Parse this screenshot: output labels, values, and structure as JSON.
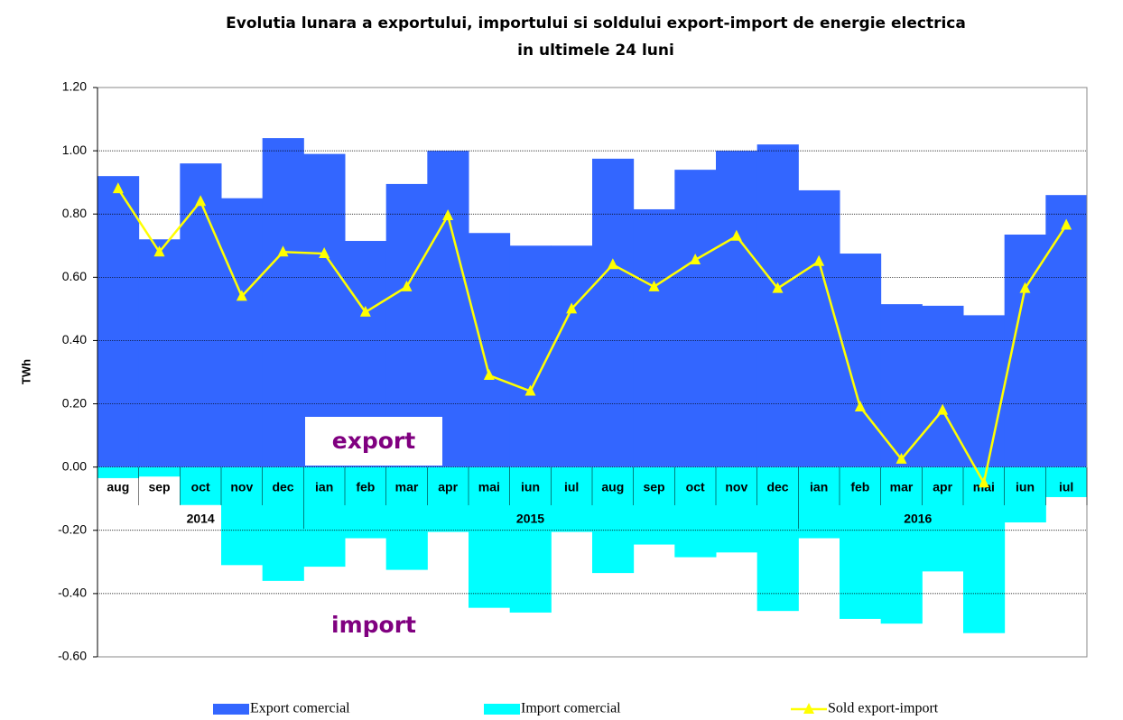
{
  "chart_data": {
    "type": "bar-line",
    "title": "Evolutia lunara a exportului, importului si soldului export-import de energie electrica",
    "subtitle": "in ultimele 24 luni",
    "y_label": "TWh",
    "categories": [
      "aug",
      "sep",
      "oct",
      "nov",
      "dec",
      "ian",
      "feb",
      "mar",
      "apr",
      "mai",
      "iun",
      "iul",
      "aug",
      "sep",
      "oct",
      "nov",
      "dec",
      "ian",
      "feb",
      "mar",
      "apr",
      "mai",
      "iun",
      "iul"
    ],
    "year_labels": [
      "2014",
      "2015",
      "2016"
    ],
    "annotations": [
      "export",
      "import"
    ],
    "series": [
      {
        "name": "Export comercial",
        "color": "#3366ff",
        "kind": "bar",
        "values": [
          0.92,
          0.72,
          0.96,
          0.85,
          1.04,
          0.99,
          0.715,
          0.895,
          1.0,
          0.74,
          0.7,
          0.7,
          0.975,
          0.815,
          0.94,
          1.0,
          1.02,
          0.875,
          0.675,
          0.515,
          0.51,
          0.48,
          0.735,
          0.86
        ]
      },
      {
        "name": "Import comercial",
        "color": "#00ffff",
        "kind": "bar",
        "values": [
          -0.035,
          -0.03,
          -0.12,
          -0.31,
          -0.36,
          -0.315,
          -0.225,
          -0.325,
          -0.205,
          -0.445,
          -0.46,
          -0.205,
          -0.335,
          -0.245,
          -0.285,
          -0.27,
          -0.455,
          -0.225,
          -0.48,
          -0.495,
          -0.33,
          -0.525,
          -0.175,
          -0.095
        ]
      },
      {
        "name": "Sold export-import",
        "color": "#ffff00",
        "kind": "line",
        "values": [
          0.88,
          0.68,
          0.84,
          0.54,
          0.68,
          0.675,
          0.49,
          0.57,
          0.795,
          0.29,
          0.24,
          0.5,
          0.64,
          0.57,
          0.655,
          0.73,
          0.565,
          0.65,
          0.19,
          0.025,
          0.18,
          -0.05,
          0.565,
          0.765
        ]
      }
    ],
    "ylim": [
      -0.6,
      1.2
    ],
    "yticks": [
      {
        "value": -0.6,
        "label": "-0.60"
      },
      {
        "value": -0.4,
        "label": "-0.40"
      },
      {
        "value": -0.2,
        "label": "-0.20"
      },
      {
        "value": 0,
        "label": "0.00"
      },
      {
        "value": 0.2,
        "label": "0.20"
      },
      {
        "value": 0.4,
        "label": "0.40"
      },
      {
        "value": 0.6,
        "label": "0.60"
      },
      {
        "value": 0.8,
        "label": "0.80"
      },
      {
        "value": 1.0,
        "label": "1.00"
      },
      {
        "value": 1.2,
        "label": "1.20"
      }
    ],
    "grid": true
  }
}
